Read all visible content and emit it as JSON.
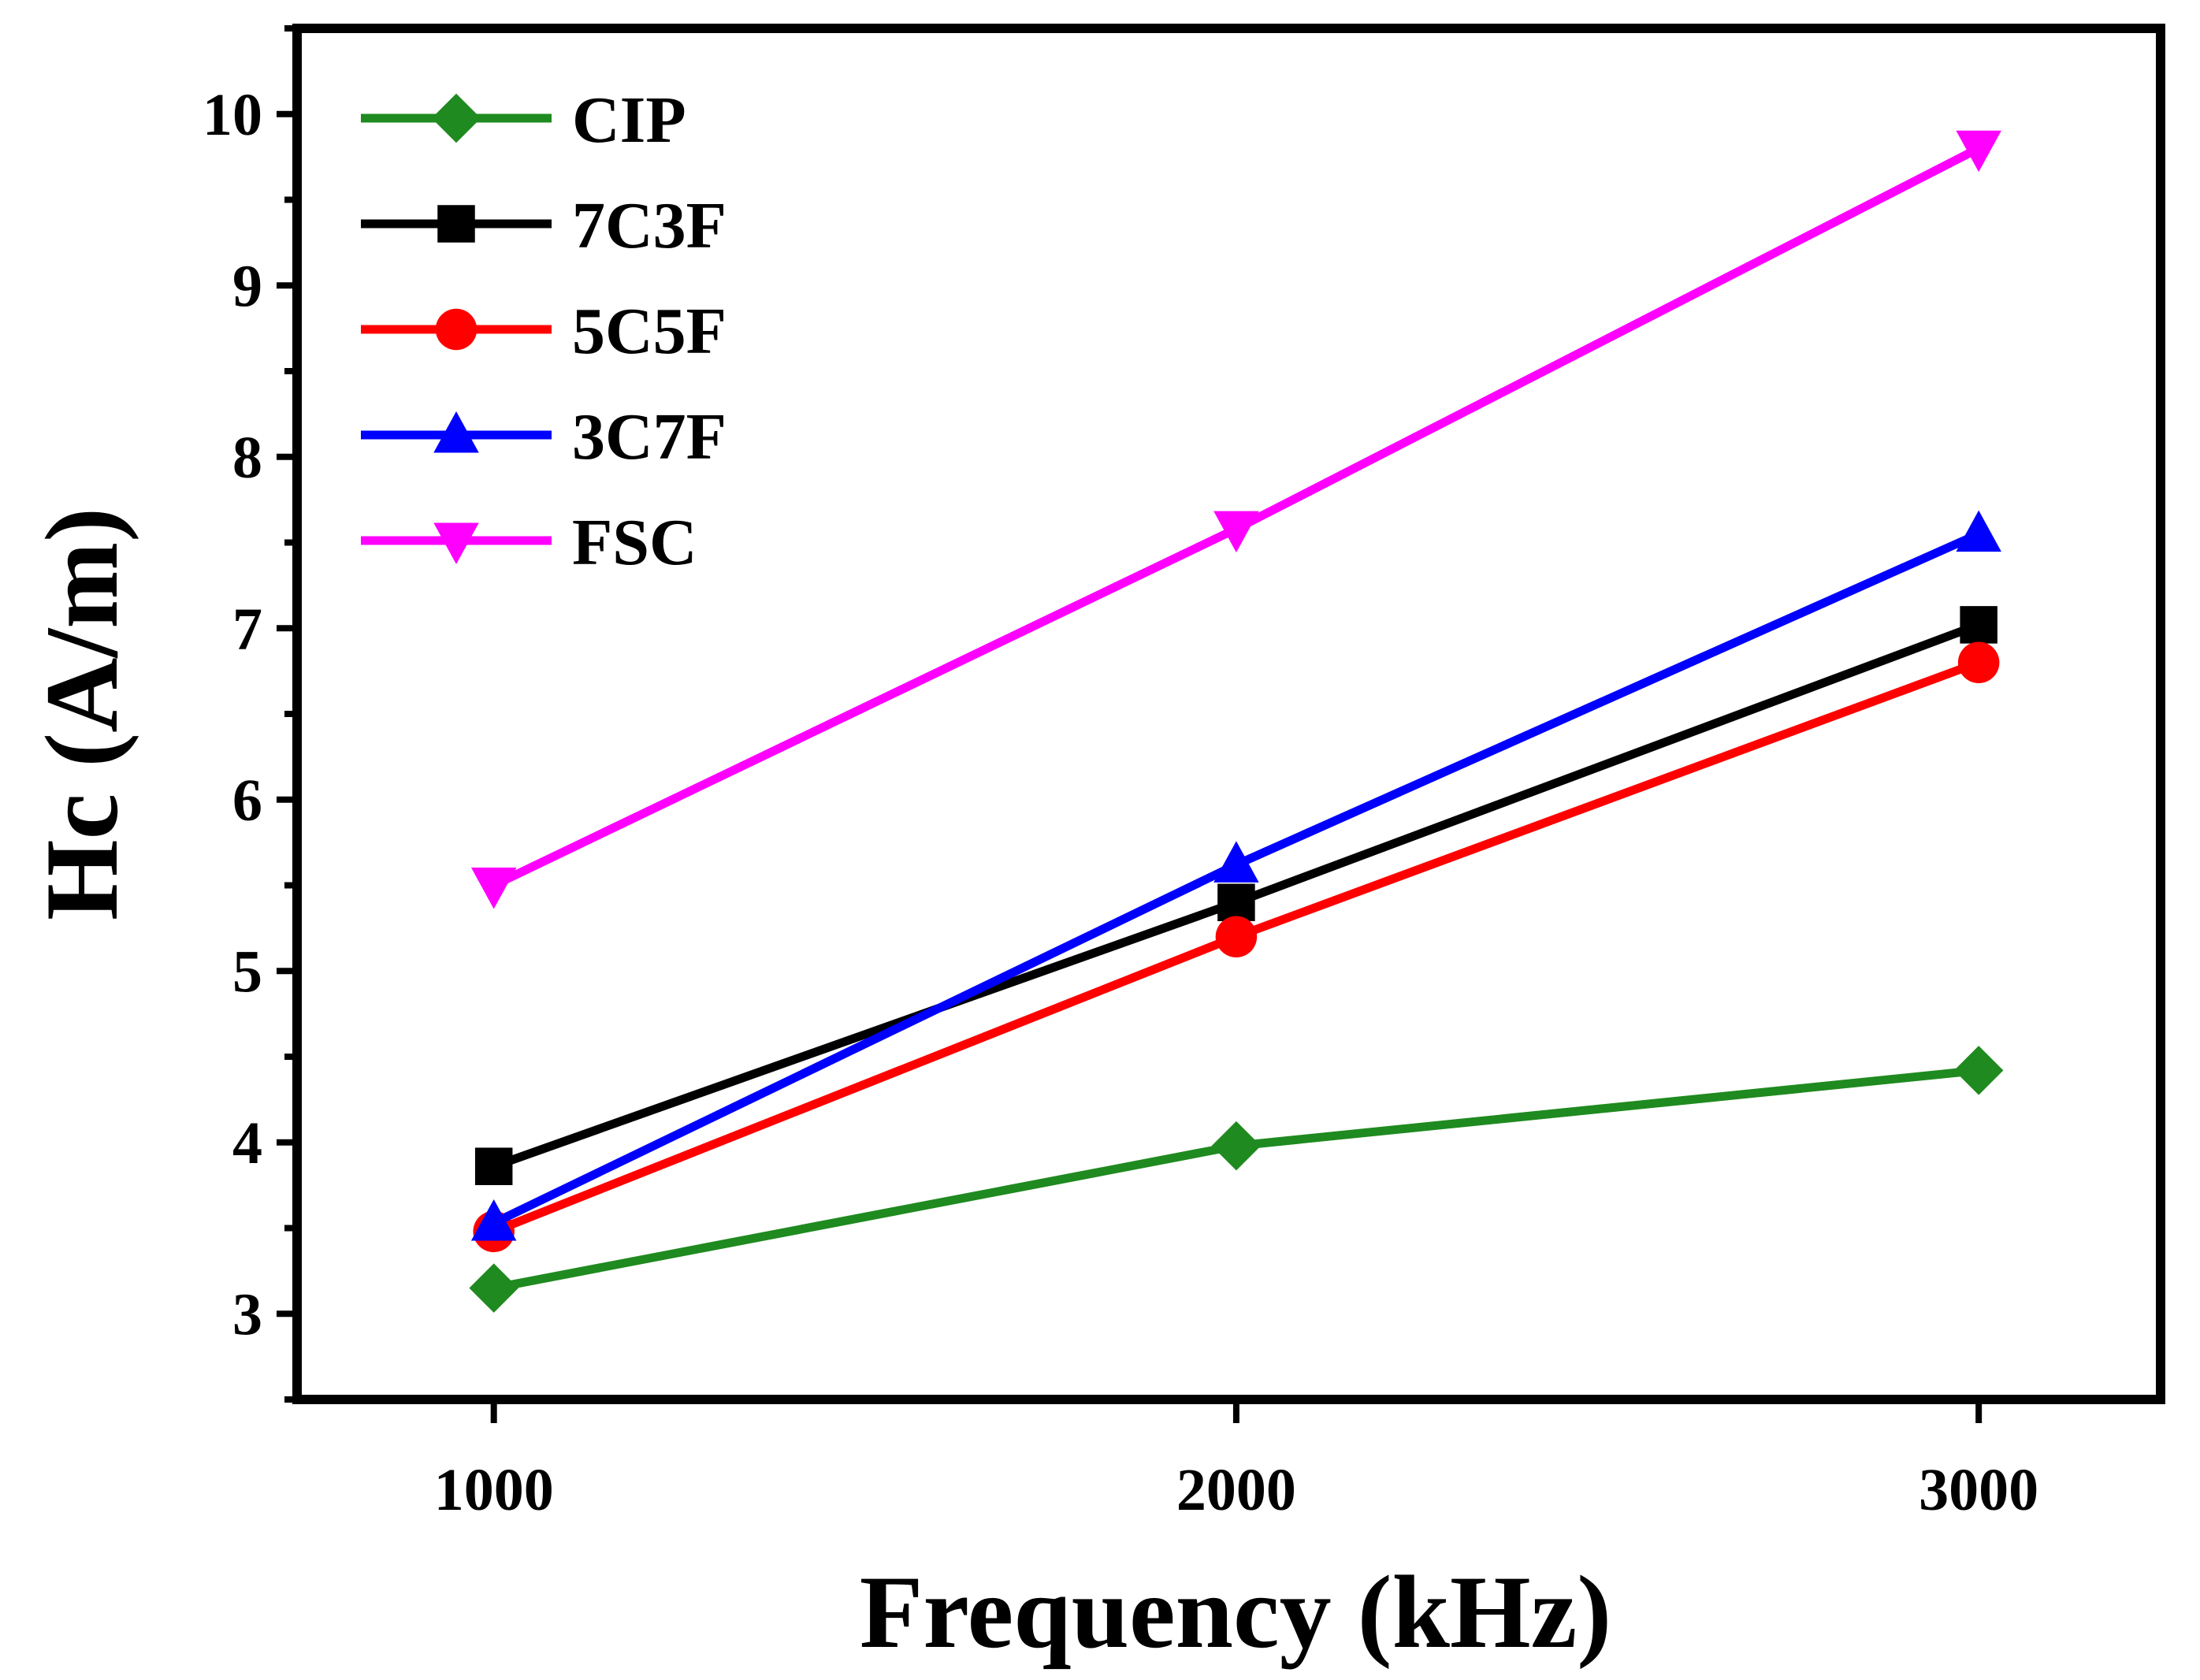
{
  "chart_data": {
    "type": "line",
    "title": "",
    "xlabel": "Frequency (kHz)",
    "ylabel": "Hc (A/m)",
    "x": [
      1000,
      2000,
      3000
    ],
    "xticks": [
      "1000",
      "2000",
      "3000"
    ],
    "yticks": [
      "3",
      "4",
      "5",
      "6",
      "7",
      "8",
      "9",
      "10"
    ],
    "xlim": [
      735,
      3245
    ],
    "ylim": [
      2.5,
      10.5
    ],
    "legend_position": "top-left",
    "series": [
      {
        "name": "CIP",
        "color": "#1f8a1f",
        "marker": "diamond",
        "values": [
          3.15,
          3.98,
          4.42
        ]
      },
      {
        "name": "7C3F",
        "color": "#000000",
        "marker": "square",
        "values": [
          3.86,
          5.4,
          7.02
        ]
      },
      {
        "name": "5C5F",
        "color": "#ff0000",
        "marker": "circle",
        "values": [
          3.48,
          5.2,
          6.8
        ]
      },
      {
        "name": "3C7F",
        "color": "#0000ff",
        "marker": "triangle-up",
        "values": [
          3.53,
          5.62,
          7.55
        ]
      },
      {
        "name": "FSC",
        "color": "#ff00ff",
        "marker": "triangle-down",
        "values": [
          5.5,
          7.58,
          9.8
        ]
      }
    ]
  }
}
